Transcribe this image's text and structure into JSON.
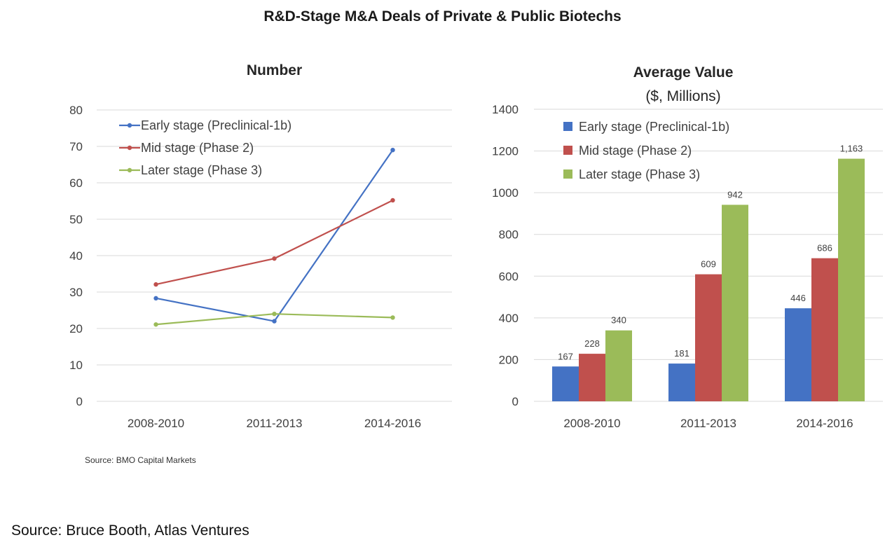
{
  "title": "R&D-Stage M&A Deals of Private & Public Biotechs",
  "source_small": "Source: BMO Capital Markets",
  "source_footer": "Source: Bruce Booth, Atlas Ventures",
  "colors": {
    "early": "#4472C4",
    "mid": "#C0504D",
    "late": "#9BBB59",
    "grid": "#D9D9D9"
  },
  "chart_data": [
    {
      "type": "line",
      "title": "Number",
      "categories": [
        "2008-2010",
        "2011-2013",
        "2014-2016"
      ],
      "ylim": [
        0,
        80
      ],
      "yticks": [
        0,
        10,
        20,
        30,
        40,
        50,
        60,
        70,
        80
      ],
      "grid": true,
      "legend": "top-left",
      "series": [
        {
          "name": "Early stage (Preclinical-1b)",
          "values": [
            28.3,
            22.0,
            69.0
          ]
        },
        {
          "name": "Mid stage (Phase 2)",
          "values": [
            32.1,
            39.2,
            55.2
          ]
        },
        {
          "name": "Later stage (Phase 3)",
          "values": [
            21.1,
            24.0,
            23.0
          ]
        }
      ]
    },
    {
      "type": "bar",
      "title": "Average Value",
      "subtitle": "($, Millions)",
      "categories": [
        "2008-2010",
        "2011-2013",
        "2014-2016"
      ],
      "ylim": [
        0,
        1400
      ],
      "yticks": [
        0,
        200,
        400,
        600,
        800,
        1000,
        1200,
        1400
      ],
      "grid": true,
      "legend": "top-left",
      "series": [
        {
          "name": "Early stage (Preclinical-1b)",
          "values": [
            167,
            181,
            446
          ],
          "labels": [
            "167",
            "181",
            "446"
          ]
        },
        {
          "name": "Mid stage (Phase 2)",
          "values": [
            228,
            609,
            686
          ],
          "labels": [
            "228",
            "609",
            "686"
          ]
        },
        {
          "name": "Later stage (Phase 3)",
          "values": [
            340,
            942,
            1163
          ],
          "labels": [
            "340",
            "942",
            "1,163"
          ]
        }
      ]
    }
  ]
}
